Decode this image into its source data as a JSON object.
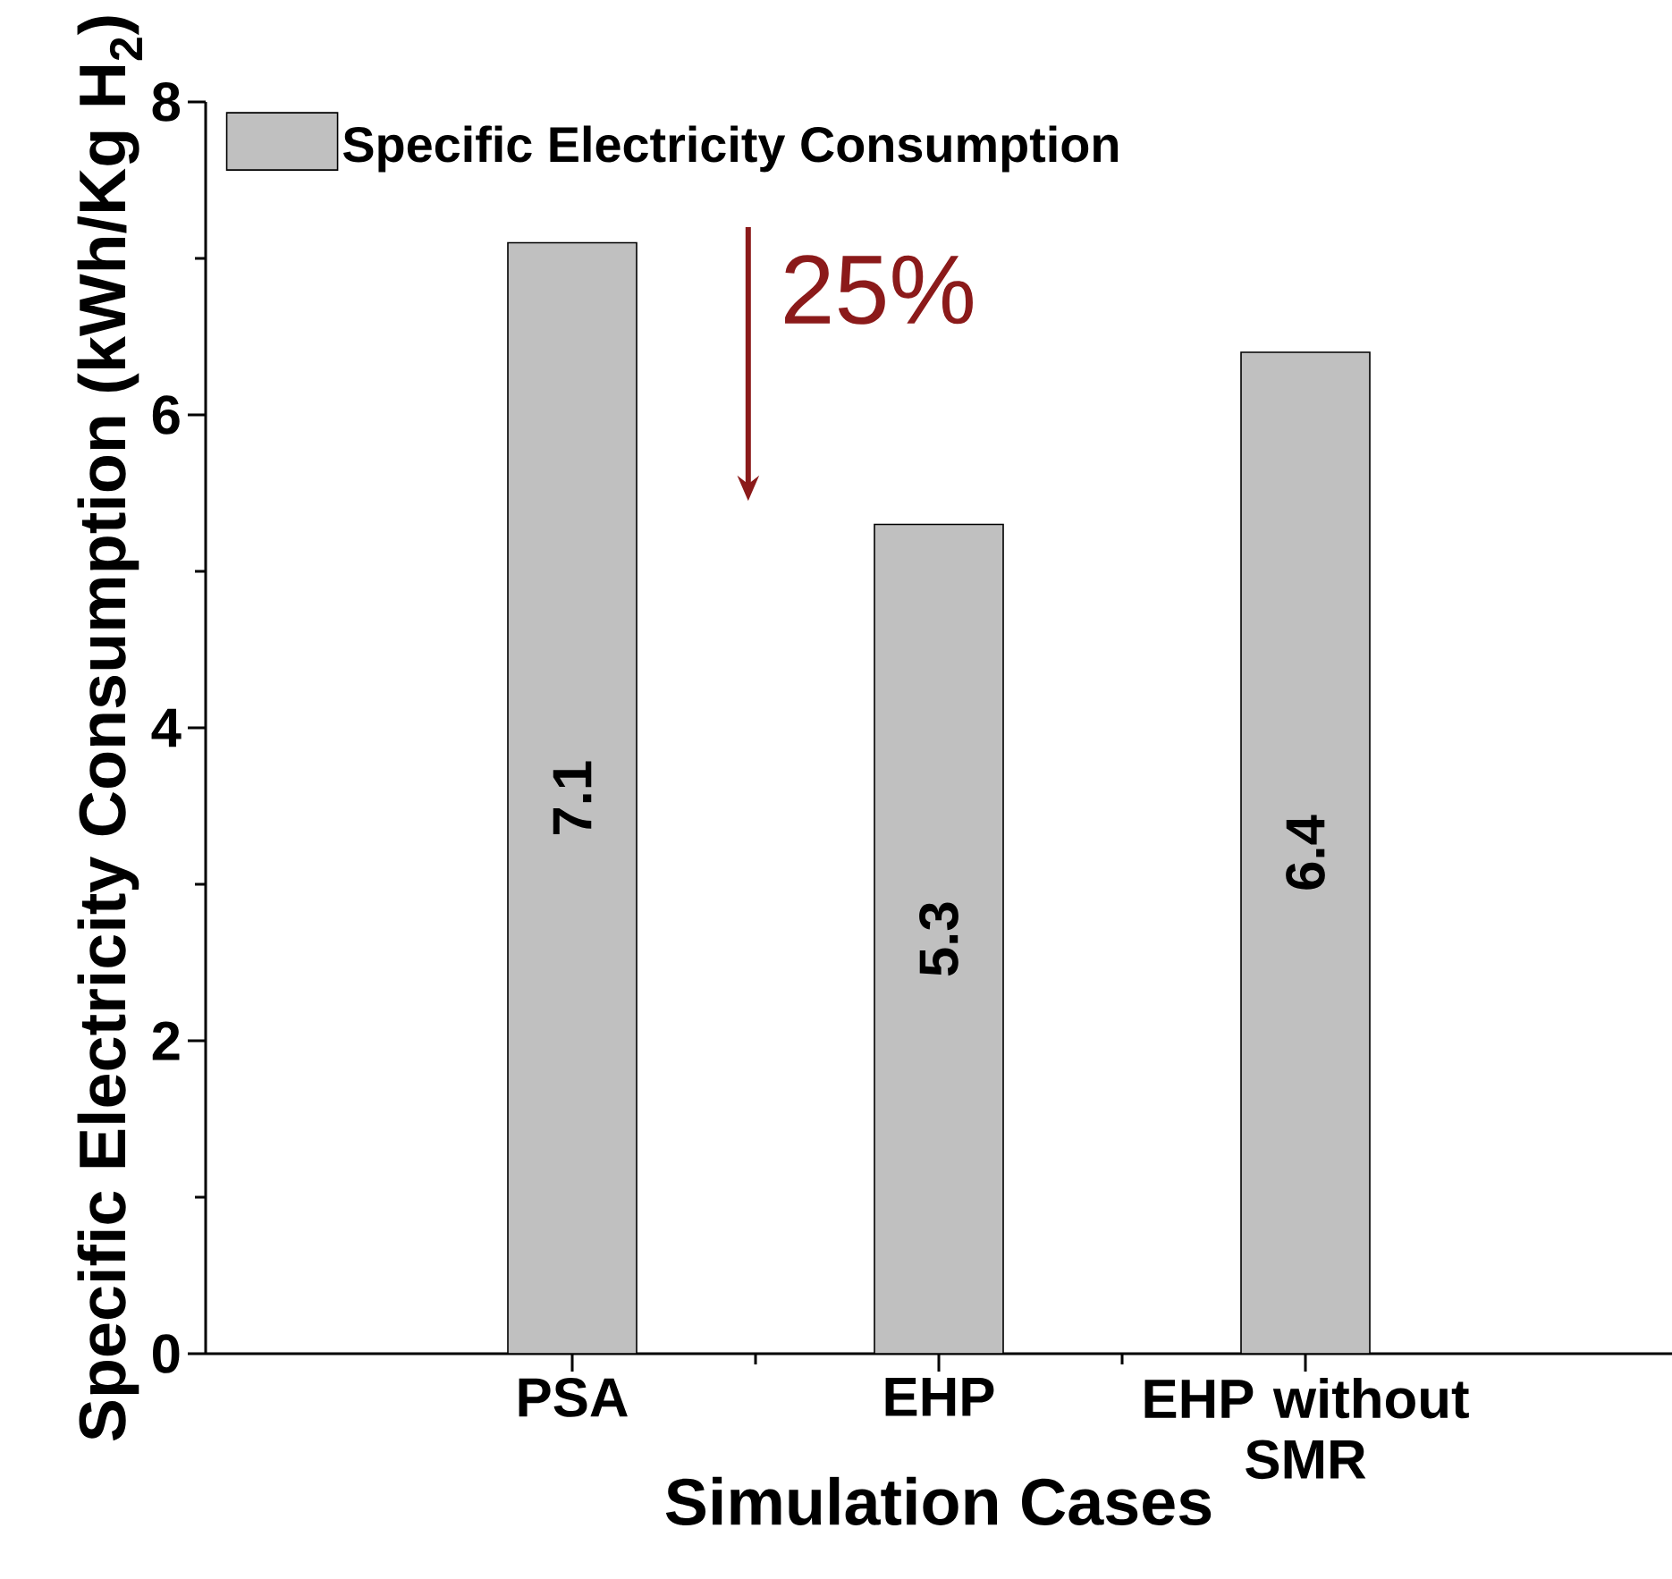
{
  "chart_data": {
    "type": "bar",
    "xlabel": "Simulation Cases",
    "ylabel": "Specific Electricity Consumption (kWh/Kg H$_{2}$)",
    "categories": [
      "PSA",
      "EHP",
      "EHP without SMR"
    ],
    "series": [
      {
        "name": "Specific Electricity Consumption",
        "color": "#c0c0c0",
        "values": [
          7.1,
          5.3,
          6.4
        ]
      }
    ],
    "ylim": [
      0,
      8
    ],
    "yticks": [
      0,
      2,
      4,
      6,
      8
    ],
    "data_labels": true,
    "legend": "top left",
    "annotations": [
      "25%"
    ]
  }
}
